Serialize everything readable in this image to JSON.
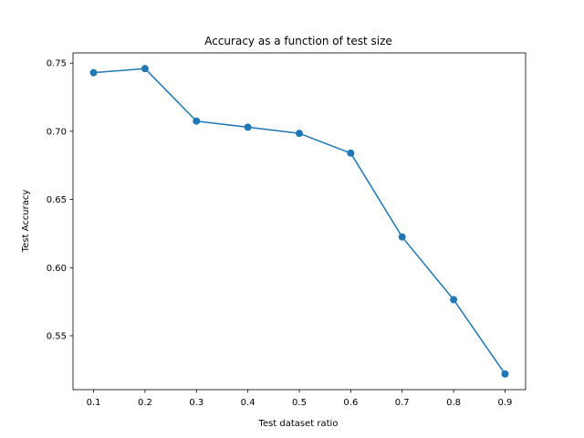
{
  "chart_data": {
    "type": "line",
    "title": "Accuracy as a function of test size",
    "xlabel": "Test dataset ratio",
    "ylabel": "Test Accuracy",
    "x": [
      0.1,
      0.2,
      0.3,
      0.4,
      0.5,
      0.6,
      0.7,
      0.8,
      0.9
    ],
    "x_tick_labels": [
      "0.1",
      "0.2",
      "0.3",
      "0.4",
      "0.5",
      "0.6",
      "0.7",
      "0.8",
      "0.9"
    ],
    "y_ticks": [
      0.55,
      0.6,
      0.65,
      0.7,
      0.75
    ],
    "y_tick_labels": [
      "0.55",
      "0.60",
      "0.65",
      "0.70",
      "0.75"
    ],
    "xlim": [
      0.06,
      0.94
    ],
    "ylim": [
      0.5105,
      0.7575
    ],
    "grid": false,
    "legend": "none",
    "series": [
      {
        "values": [
          0.743,
          0.746,
          0.7075,
          0.703,
          0.6985,
          0.684,
          0.6225,
          0.5765,
          0.522
        ],
        "color": "#1f77b4",
        "marker": "circle"
      }
    ]
  }
}
